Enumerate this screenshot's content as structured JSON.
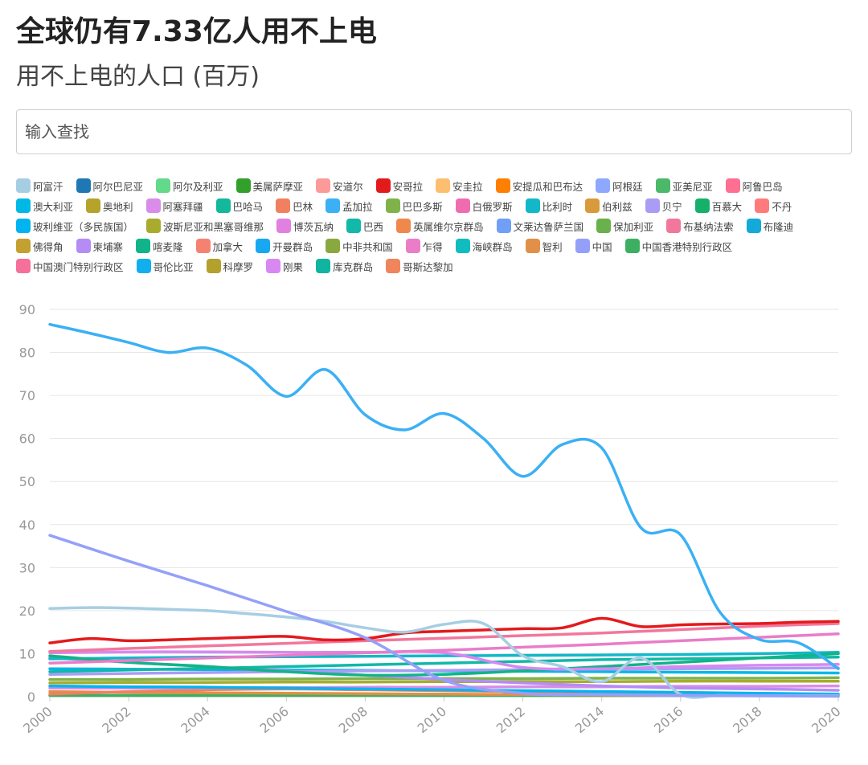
{
  "header": {
    "title": "全球仍有7.33亿人用不上电",
    "subtitle": "用不上电的人口 (百万)"
  },
  "search": {
    "placeholder": "输入查找"
  },
  "legend": {
    "items": [
      {
        "label": "阿富汗",
        "color": "#a6cee3"
      },
      {
        "label": "阿尔巴尼亚",
        "color": "#1f78b4"
      },
      {
        "label": "阿尔及利亚",
        "color": "#63d98a"
      },
      {
        "label": "美属萨摩亚",
        "color": "#33a02c"
      },
      {
        "label": "安道尔",
        "color": "#fb9a99"
      },
      {
        "label": "安哥拉",
        "color": "#e31a1c"
      },
      {
        "label": "安圭拉",
        "color": "#fdbf6f"
      },
      {
        "label": "安提瓜和巴布达",
        "color": "#ff7f00"
      },
      {
        "label": "阿根廷",
        "color": "#8fa8ff"
      },
      {
        "label": "亚美尼亚",
        "color": "#4cb86a"
      },
      {
        "label": "阿鲁巴岛",
        "color": "#ff6f91"
      },
      {
        "label": "澳大利亚",
        "color": "#00b8e6"
      },
      {
        "label": "奥地利",
        "color": "#b5a32b"
      },
      {
        "label": "阿塞拜疆",
        "color": "#d98ce8"
      },
      {
        "label": "巴哈马",
        "color": "#14b89a"
      },
      {
        "label": "巴林",
        "color": "#f08060"
      },
      {
        "label": "孟加拉",
        "color": "#3bb0f5"
      },
      {
        "label": "巴巴多斯",
        "color": "#7fb34a"
      },
      {
        "label": "白俄罗斯",
        "color": "#f06cb0"
      },
      {
        "label": "比利时",
        "color": "#12b8c8"
      },
      {
        "label": "伯利兹",
        "color": "#d99a3c"
      },
      {
        "label": "贝宁",
        "color": "#a99cf5"
      },
      {
        "label": "百慕大",
        "color": "#17b06b"
      },
      {
        "label": "不丹",
        "color": "#ff7b7b"
      },
      {
        "label": "玻利维亚（多民族国）",
        "color": "#00b4f0"
      },
      {
        "label": "波斯尼亚和黑塞哥维那",
        "color": "#a8ab2e"
      },
      {
        "label": "博茨瓦纳",
        "color": "#e080e0"
      },
      {
        "label": "巴西",
        "color": "#12b8a8"
      },
      {
        "label": "英属维尔京群岛",
        "color": "#f0884e"
      },
      {
        "label": "文莱达鲁萨兰国",
        "color": "#6fa0f5"
      },
      {
        "label": "保加利亚",
        "color": "#6ab04c"
      },
      {
        "label": "布基纳法索",
        "color": "#f2779c"
      },
      {
        "label": "布隆迪",
        "color": "#12aad8"
      },
      {
        "label": "佛得角",
        "color": "#c4a030"
      },
      {
        "label": "柬埔寨",
        "color": "#b48cf5"
      },
      {
        "label": "喀麦隆",
        "color": "#10b488"
      },
      {
        "label": "加拿大",
        "color": "#f58270"
      },
      {
        "label": "开曼群岛",
        "color": "#18a8f0"
      },
      {
        "label": "中非共和国",
        "color": "#8aa840"
      },
      {
        "label": "乍得",
        "color": "#ea7cc8"
      },
      {
        "label": "海峡群岛",
        "color": "#10bcc0"
      },
      {
        "label": "智利",
        "color": "#e09048"
      },
      {
        "label": "中国",
        "color": "#94a0f8"
      },
      {
        "label": "中国香港特别行政区",
        "color": "#3cb060"
      },
      {
        "label": "中国澳门特别行政区",
        "color": "#f5709a"
      },
      {
        "label": "哥伦比亚",
        "color": "#10b0f0"
      },
      {
        "label": "科摩罗",
        "color": "#b4a02c"
      },
      {
        "label": "刚果",
        "color": "#d888f0"
      },
      {
        "label": "库克群岛",
        "color": "#10b4a0"
      },
      {
        "label": "哥斯达黎加",
        "color": "#f0845c"
      }
    ]
  },
  "chart_data": {
    "type": "line",
    "title": "全球仍有7.33亿人用不上电",
    "subtitle": "用不上电的人口 (百万)",
    "xlabel": "",
    "ylabel": "",
    "xlim": [
      2000,
      2020
    ],
    "ylim": [
      0,
      90
    ],
    "x_ticks": [
      "2000",
      "2002",
      "2004",
      "2006",
      "2008",
      "2010",
      "2012",
      "2014",
      "2016",
      "2018",
      "2020"
    ],
    "y_ticks": [
      "0",
      "10",
      "20",
      "30",
      "40",
      "50",
      "60",
      "70",
      "80",
      "90"
    ],
    "grid": true,
    "legend": "top",
    "series": [
      {
        "name": "孟加拉",
        "color": "#3bb0f5",
        "width": 3.5,
        "x": [
          2000,
          2001,
          2002,
          2003,
          2004,
          2005,
          2006,
          2007,
          2008,
          2009,
          2010,
          2011,
          2012,
          2013,
          2014,
          2015,
          2016,
          2017,
          2018,
          2019,
          2020
        ],
        "values": [
          86.5,
          84.5,
          82.3,
          80.0,
          81.0,
          77.0,
          69.8,
          76.0,
          65.5,
          62.0,
          65.8,
          60.0,
          51.2,
          58.6,
          57.8,
          39.2,
          37.6,
          19.6,
          13.3,
          12.5,
          6.5
        ]
      },
      {
        "name": "中国",
        "color": "#94a0f8",
        "width": 3.5,
        "x": [
          2000,
          2002,
          2004,
          2006,
          2008,
          2010,
          2012,
          2014,
          2016,
          2018,
          2020
        ],
        "values": [
          37.5,
          31.5,
          25.8,
          19.8,
          13.7,
          3.8,
          0.8,
          0.5,
          0.3,
          0.2,
          0.1
        ]
      },
      {
        "name": "阿富汗",
        "color": "#a6cee3",
        "width": 3.5,
        "x": [
          2000,
          2001,
          2002,
          2003,
          2004,
          2005,
          2006,
          2007,
          2008,
          2009,
          2010,
          2011,
          2012,
          2013,
          2014,
          2015,
          2016,
          2017,
          2018,
          2019,
          2020
        ],
        "values": [
          20.5,
          20.7,
          20.6,
          20.3,
          20.0,
          19.3,
          18.5,
          17.5,
          16.0,
          15.0,
          16.8,
          17.0,
          9.5,
          7.0,
          3.5,
          9.0,
          0.5,
          0.3,
          0.2,
          0.2,
          0.2
        ]
      },
      {
        "name": "安哥拉",
        "color": "#e31a1c",
        "width": 3.5,
        "x": [
          2000,
          2001,
          2002,
          2003,
          2004,
          2005,
          2006,
          2007,
          2008,
          2009,
          2010,
          2011,
          2012,
          2013,
          2014,
          2015,
          2016,
          2017,
          2018,
          2019,
          2020
        ],
        "values": [
          12.5,
          13.5,
          13.0,
          13.2,
          13.5,
          13.8,
          14.0,
          13.2,
          13.5,
          14.8,
          15.2,
          15.5,
          15.8,
          16.0,
          18.2,
          16.3,
          16.7,
          16.9,
          17.0,
          17.3,
          17.5
        ]
      },
      {
        "name": "布基纳法索",
        "color": "#f2779c",
        "width": 3.5,
        "x": [
          2000,
          2002,
          2004,
          2006,
          2008,
          2010,
          2012,
          2014,
          2016,
          2018,
          2020
        ],
        "values": [
          10.5,
          11.2,
          11.8,
          12.4,
          13.0,
          13.6,
          14.2,
          14.8,
          15.6,
          16.4,
          17.0
        ]
      },
      {
        "name": "乍得",
        "color": "#ea7cc8",
        "width": 3.5,
        "x": [
          2000,
          2002,
          2004,
          2006,
          2008,
          2010,
          2012,
          2014,
          2016,
          2018,
          2020
        ],
        "values": [
          7.8,
          8.4,
          9.0,
          9.6,
          10.2,
          10.8,
          11.5,
          12.2,
          13.0,
          13.8,
          14.6
        ]
      },
      {
        "name": "刚果",
        "color": "#d888f0",
        "width": 3.5,
        "x": [
          2000,
          2002,
          2004,
          2006,
          2008,
          2010,
          2012,
          2014,
          2016,
          2018,
          2020
        ],
        "values": [
          10.2,
          10.4,
          10.4,
          10.3,
          10.3,
          10.2,
          6.8,
          6.5,
          7.0,
          7.3,
          7.5
        ]
      },
      {
        "name": "喀麦隆",
        "color": "#10b488",
        "width": 3.5,
        "x": [
          2000,
          2002,
          2004,
          2006,
          2008,
          2010,
          2012,
          2014,
          2016,
          2018,
          2020
        ],
        "values": [
          9.5,
          8.0,
          7.0,
          5.8,
          5.0,
          5.2,
          6.0,
          7.0,
          8.0,
          9.0,
          10.0
        ]
      },
      {
        "name": "比利时",
        "color": "#12b8c8",
        "width": 3.5,
        "x": [
          2000,
          2002,
          2004,
          2006,
          2008,
          2010,
          2012,
          2014,
          2016,
          2018,
          2020
        ],
        "values": [
          8.8,
          9.0,
          9.2,
          9.3,
          9.4,
          9.5,
          9.6,
          9.7,
          9.8,
          10.0,
          10.3
        ]
      },
      {
        "name": "巴西",
        "color": "#12b8a8",
        "width": 3.5,
        "x": [
          2000,
          2002,
          2004,
          2006,
          2008,
          2010,
          2012,
          2014,
          2016,
          2018,
          2020
        ],
        "values": [
          5.8,
          6.2,
          6.6,
          7.0,
          7.4,
          7.8,
          8.2,
          8.6,
          8.8,
          9.0,
          9.2
        ]
      },
      {
        "name": "柬埔寨",
        "color": "#b48cf5",
        "width": 3.5,
        "x": [
          2000,
          2002,
          2004,
          2006,
          2008,
          2010,
          2012,
          2014,
          2016,
          2018,
          2020
        ],
        "values": [
          9.0,
          8.0,
          7.0,
          6.0,
          5.0,
          4.0,
          3.2,
          2.5,
          2.0,
          1.8,
          1.5
        ]
      },
      {
        "name": "贝宁",
        "color": "#a99cf5",
        "width": 3.5,
        "x": [
          2000,
          2002,
          2004,
          2006,
          2008,
          2010,
          2012,
          2014,
          2016,
          2018,
          2020
        ],
        "values": [
          5.2,
          5.4,
          5.6,
          5.8,
          6.0,
          6.1,
          6.3,
          6.4,
          6.5,
          6.6,
          6.7
        ]
      },
      {
        "name": "澳大利亚",
        "color": "#00b8e6",
        "width": 3.5,
        "x": [
          2000,
          2002,
          2004,
          2006,
          2008,
          2010,
          2012,
          2014,
          2016,
          2018,
          2020
        ],
        "values": [
          6.5,
          6.4,
          6.3,
          6.2,
          6.1,
          6.0,
          5.9,
          5.8,
          5.7,
          5.6,
          5.5
        ]
      },
      {
        "name": "巴巴多斯",
        "color": "#7fb34a",
        "width": 3.5,
        "x": [
          2000,
          2002,
          2004,
          2006,
          2008,
          2010,
          2012,
          2014,
          2016,
          2018,
          2020
        ],
        "values": [
          4.0,
          4.0,
          4.1,
          4.1,
          4.2,
          4.2,
          4.2,
          4.3,
          4.3,
          4.3,
          4.4
        ]
      },
      {
        "name": "波斯尼亚和黑塞哥维那",
        "color": "#a8ab2e",
        "width": 3.5,
        "x": [
          2000,
          2002,
          2004,
          2006,
          2008,
          2010,
          2012,
          2014,
          2016,
          2018,
          2020
        ],
        "values": [
          3.2,
          3.3,
          3.3,
          3.4,
          3.4,
          3.5,
          3.5,
          3.5,
          3.6,
          3.6,
          3.6
        ]
      },
      {
        "name": "玻利维亚（多民族国）",
        "color": "#00b4f0",
        "width": 3.5,
        "x": [
          2000,
          2002,
          2004,
          2006,
          2008,
          2010,
          2012,
          2014,
          2016,
          2018,
          2020
        ],
        "values": [
          2.5,
          2.3,
          2.2,
          2.0,
          1.8,
          1.6,
          1.4,
          1.2,
          1.0,
          0.8,
          0.6
        ]
      },
      {
        "name": "阿塞拜疆",
        "color": "#d98ce8",
        "width": 3.5,
        "x": [
          2000,
          2002,
          2004,
          2006,
          2008,
          2010,
          2012,
          2014,
          2016,
          2018,
          2020
        ],
        "values": [
          2.0,
          2.0,
          2.1,
          2.1,
          2.2,
          2.2,
          2.3,
          2.3,
          2.4,
          2.4,
          2.5
        ]
      },
      {
        "name": "巴林",
        "color": "#f08060",
        "width": 3.5,
        "x": [
          2000,
          2002,
          2004,
          2006,
          2008,
          2010,
          2012,
          2014,
          2016,
          2018,
          2020
        ],
        "values": [
          0.6,
          1.2,
          1.6,
          1.8,
          1.6,
          1.4,
          1.2,
          1.0,
          0.8,
          0.6,
          0.5
        ]
      },
      {
        "name": "智利",
        "color": "#e09048",
        "width": 3.5,
        "x": [
          2000,
          2002,
          2004,
          2006,
          2008,
          2010,
          2012,
          2014,
          2016,
          2018,
          2020
        ],
        "values": [
          1.2,
          1.0,
          0.9,
          0.8,
          0.7,
          0.6,
          0.5,
          0.4,
          0.3,
          0.3,
          0.2
        ]
      },
      {
        "name": "中国香港特别行政区",
        "color": "#3cb060",
        "width": 3.5,
        "x": [
          2000,
          2002,
          2004,
          2006,
          2008,
          2010,
          2012,
          2014,
          2016,
          2018,
          2020
        ],
        "values": [
          0.3,
          0.3,
          0.3,
          0.3,
          0.3,
          0.3,
          0.3,
          0.3,
          0.3,
          0.3,
          0.3
        ]
      }
    ]
  }
}
